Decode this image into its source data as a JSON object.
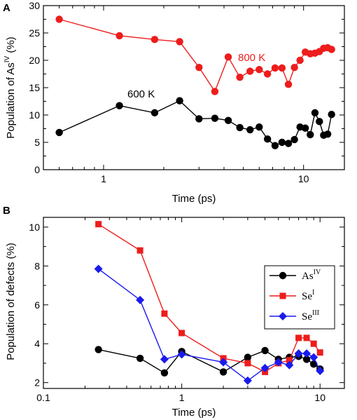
{
  "chart_data": [
    {
      "panel": "A",
      "type": "line",
      "xscale": "log",
      "xlim": [
        0.5,
        16
      ],
      "ylim": [
        0,
        30
      ],
      "xlabel": "Time (ps)",
      "ylabel_prefix": "Population of As",
      "ylabel_sup": "IV",
      "ylabel_suffix": " (%)",
      "xticks": [
        "1",
        "10"
      ],
      "yticks": [
        "0",
        "5",
        "10",
        "15",
        "20",
        "25",
        "30"
      ],
      "series": [
        {
          "name": "800 K",
          "color": "#ee1c1c",
          "marker": "circle",
          "x": [
            0.6,
            1.2,
            1.8,
            2.4,
            3.0,
            3.6,
            4.2,
            4.8,
            5.4,
            6.0,
            6.6,
            7.2,
            7.8,
            8.4,
            9.0,
            9.6,
            10.2,
            10.8,
            11.4,
            12.0,
            12.6,
            13.2,
            13.8
          ],
          "y": [
            27.5,
            24.5,
            23.8,
            23.4,
            18.7,
            14.3,
            20.6,
            16.9,
            18.0,
            18.3,
            17.5,
            18.6,
            18.6,
            15.6,
            18.7,
            20.0,
            21.5,
            21.2,
            21.3,
            21.6,
            22.2,
            22.3,
            22.0
          ]
        },
        {
          "name": "600 K",
          "color": "#000000",
          "marker": "circle",
          "x": [
            0.6,
            1.2,
            1.8,
            2.4,
            3.0,
            3.6,
            4.2,
            4.8,
            5.4,
            6.0,
            6.6,
            7.2,
            7.8,
            8.4,
            9.0,
            9.6,
            10.2,
            10.8,
            11.4,
            12.0,
            12.6,
            13.2,
            13.8
          ],
          "y": [
            6.8,
            11.7,
            10.4,
            12.6,
            9.3,
            9.4,
            9.0,
            7.7,
            7.3,
            7.8,
            5.6,
            4.4,
            5.0,
            4.8,
            5.5,
            7.8,
            7.6,
            6.4,
            10.4,
            8.8,
            6.3,
            6.5,
            10.1
          ]
        }
      ],
      "annotations": [
        {
          "text": "800 K",
          "color": "#ee1c1c"
        },
        {
          "text": "600 K",
          "color": "#000000"
        }
      ]
    },
    {
      "panel": "B",
      "type": "line",
      "xscale": "log",
      "xlim": [
        0.1,
        15
      ],
      "ylim": [
        1.7,
        10.5
      ],
      "xlabel": "Time (ps)",
      "ylabel": "Population of defects (%)",
      "xticks": [
        "0.1",
        "1",
        "10"
      ],
      "yticks": [
        "2",
        "4",
        "6",
        "8",
        "10"
      ],
      "legend_position": "right",
      "series": [
        {
          "name_base": "As",
          "name_sup": "IV",
          "color": "#000000",
          "marker": "circle",
          "x": [
            0.25,
            0.5,
            0.75,
            1.0,
            2.0,
            3.0,
            4.0,
            5.0,
            6.0,
            7.0,
            8.0,
            9.0,
            10.0
          ],
          "y": [
            3.7,
            3.25,
            2.5,
            3.6,
            2.55,
            3.3,
            3.65,
            3.2,
            3.3,
            3.35,
            3.2,
            2.95,
            2.7
          ]
        },
        {
          "name_base": "Se",
          "name_sup": "I",
          "color": "#ee1c1c",
          "marker": "square",
          "x": [
            0.25,
            0.5,
            0.75,
            1.0,
            2.0,
            3.0,
            4.0,
            5.0,
            6.0,
            7.0,
            8.0,
            9.0,
            10.0
          ],
          "y": [
            10.15,
            8.8,
            5.55,
            4.55,
            3.25,
            3.0,
            2.55,
            3.0,
            3.15,
            4.3,
            4.3,
            4.0,
            3.55
          ]
        },
        {
          "name_base": "Se",
          "name_sup": "III",
          "color": "#1a1aee",
          "marker": "diamond",
          "x": [
            0.25,
            0.5,
            0.75,
            1.0,
            2.0,
            3.0,
            4.0,
            5.0,
            6.0,
            7.0,
            8.0,
            9.0,
            10.0
          ],
          "y": [
            7.85,
            6.25,
            3.2,
            3.45,
            3.05,
            2.1,
            2.75,
            3.05,
            2.9,
            3.5,
            3.5,
            3.3,
            2.6
          ]
        }
      ]
    }
  ]
}
